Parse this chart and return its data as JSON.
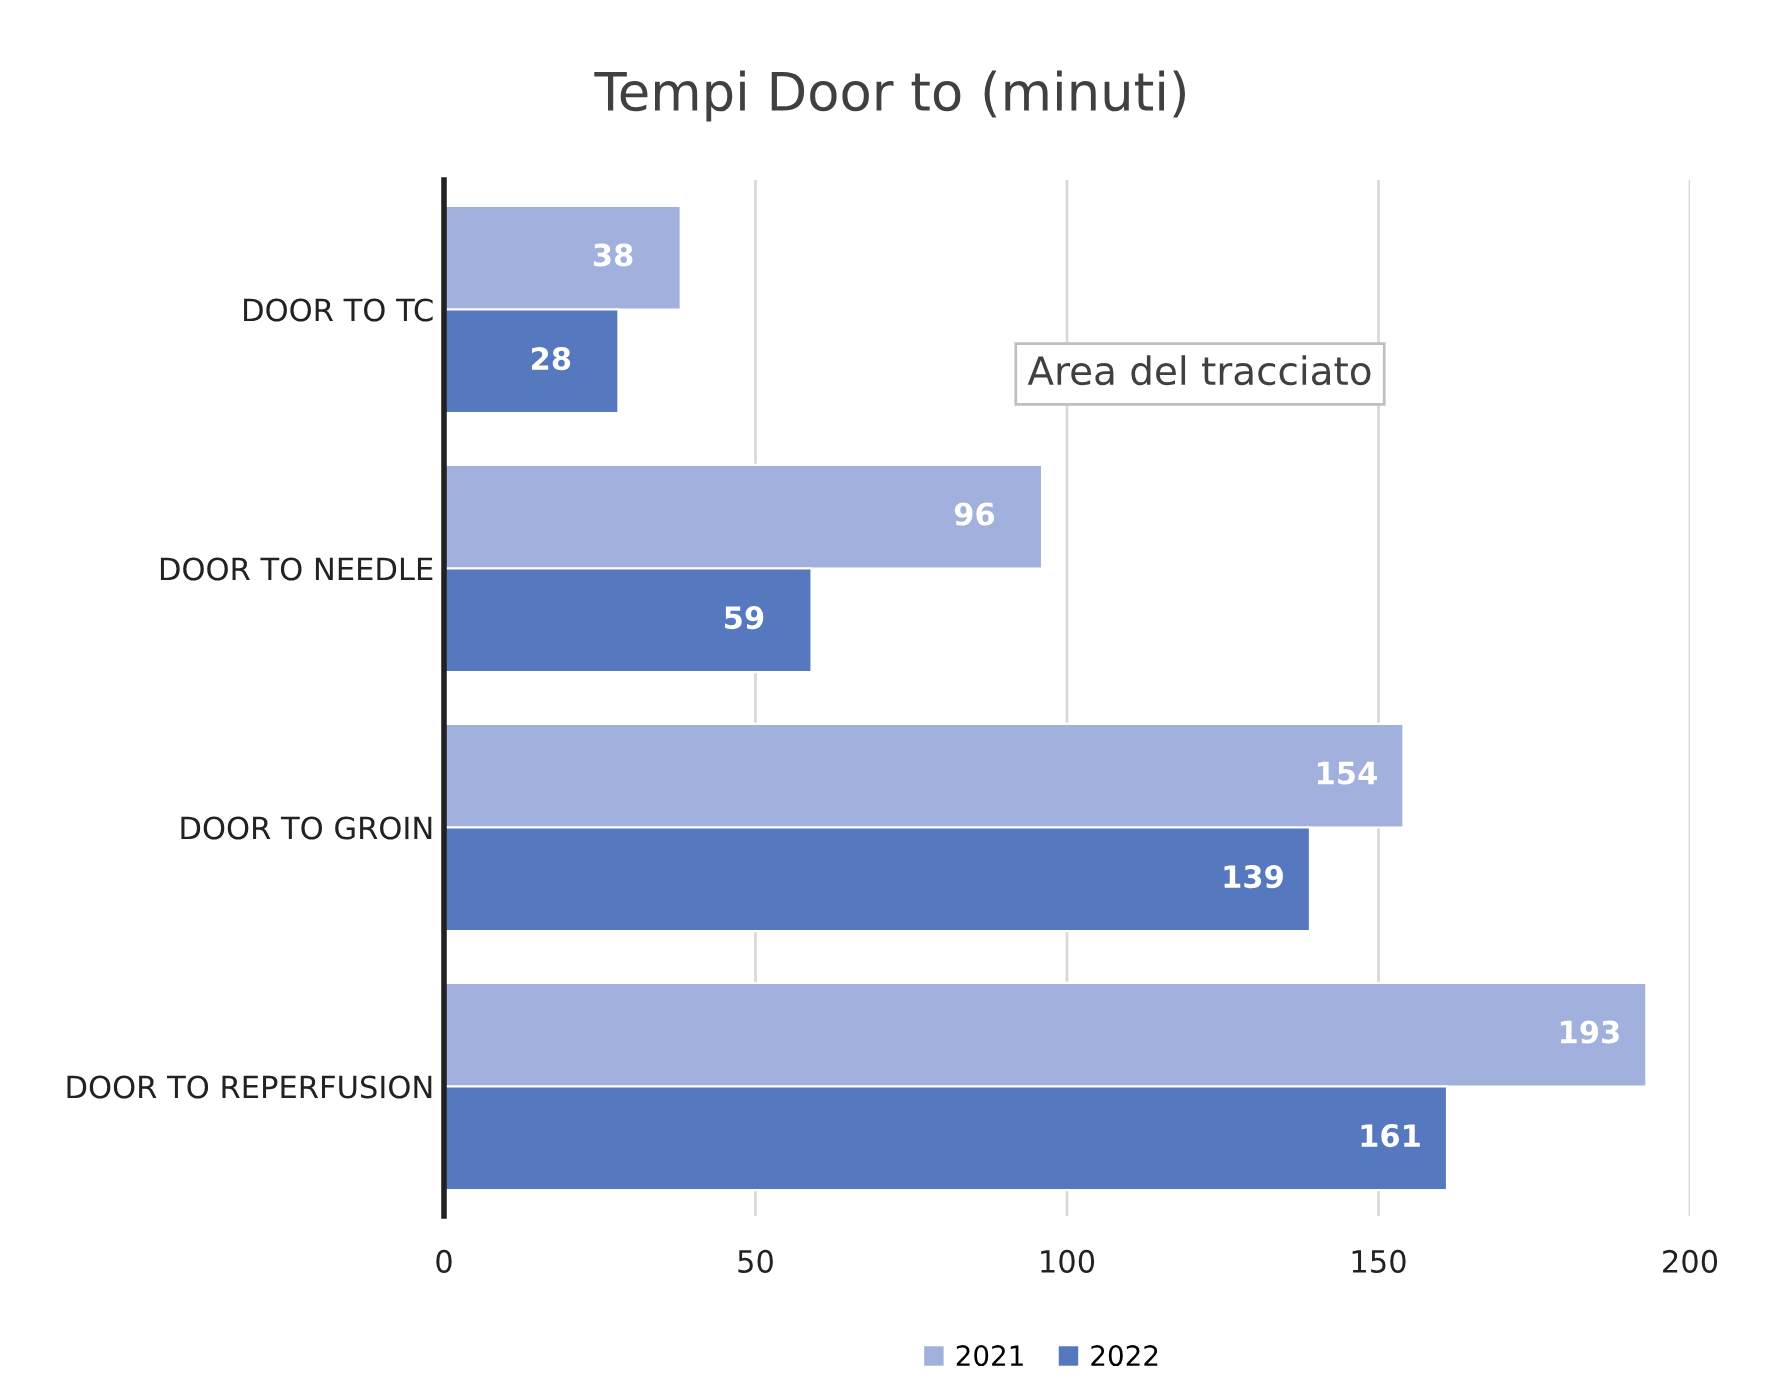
{
  "chart_data": {
    "type": "bar",
    "orientation": "horizontal",
    "title": "Tempi Door to (minuti)",
    "categories": [
      "DOOR TO TC",
      "DOOR TO NEEDLE",
      "DOOR TO GROIN",
      "DOOR TO REPERFUSION"
    ],
    "series": [
      {
        "name": "2021",
        "color": "#a1b0dd",
        "values": [
          38,
          96,
          154,
          193
        ]
      },
      {
        "name": "2022",
        "color": "#5578be",
        "values": [
          28,
          59,
          139,
          161
        ]
      }
    ],
    "xlim": [
      0,
      200
    ],
    "xticks": [
      0,
      50,
      100,
      150,
      200
    ],
    "grid": "x",
    "legend": "bottom",
    "data_labels": true,
    "annotations": [
      "Area del tracciato"
    ]
  }
}
